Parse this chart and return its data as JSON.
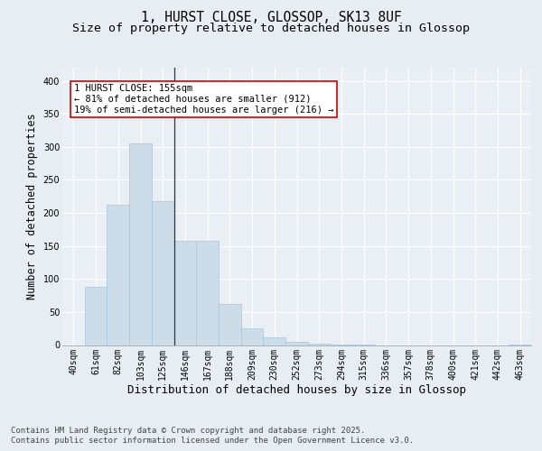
{
  "title_line1": "1, HURST CLOSE, GLOSSOP, SK13 8UF",
  "title_line2": "Size of property relative to detached houses in Glossop",
  "xlabel": "Distribution of detached houses by size in Glossop",
  "ylabel": "Number of detached properties",
  "bins": [
    "40sqm",
    "61sqm",
    "82sqm",
    "103sqm",
    "125sqm",
    "146sqm",
    "167sqm",
    "188sqm",
    "209sqm",
    "230sqm",
    "252sqm",
    "273sqm",
    "294sqm",
    "315sqm",
    "336sqm",
    "357sqm",
    "378sqm",
    "400sqm",
    "421sqm",
    "442sqm",
    "463sqm"
  ],
  "values": [
    0,
    88,
    213,
    305,
    218,
    158,
    158,
    62,
    25,
    12,
    5,
    2,
    1,
    1,
    0,
    0,
    0,
    0,
    0,
    0,
    1
  ],
  "bar_color": "#ccdce8",
  "bar_edgecolor": "#aac4d8",
  "annotation_text": "1 HURST CLOSE: 155sqm\n← 81% of detached houses are smaller (912)\n19% of semi-detached houses are larger (216) →",
  "annotation_box_color": "#ffffff",
  "annotation_box_edgecolor": "#cc0000",
  "vline_bin_index": 5,
  "ylim": [
    0,
    420
  ],
  "yticks": [
    0,
    50,
    100,
    150,
    200,
    250,
    300,
    350,
    400
  ],
  "background_color": "#e8edf4",
  "plot_background_color": "#eaeff6",
  "grid_color": "#ffffff",
  "footer_line1": "Contains HM Land Registry data © Crown copyright and database right 2025.",
  "footer_line2": "Contains public sector information licensed under the Open Government Licence v3.0.",
  "title_fontsize": 10.5,
  "subtitle_fontsize": 9.5,
  "axis_label_fontsize": 8.5,
  "tick_fontsize": 7,
  "footer_fontsize": 6.5,
  "annotation_fontsize": 7.5
}
